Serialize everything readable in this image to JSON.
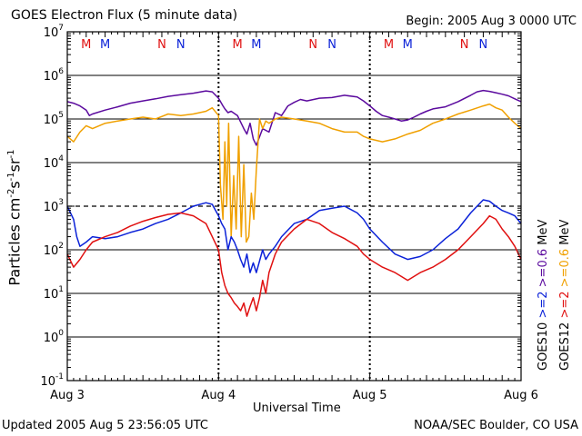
{
  "header": {
    "title": "GOES Electron Flux (5 minute data)",
    "begin": "Begin: 2005 Aug 3 0000 UTC"
  },
  "footer": {
    "updated": "Updated 2005 Aug  5 23:56:05 UTC",
    "credit": "NOAA/SEC Boulder, CO USA"
  },
  "colors": {
    "goes10_high": "#5b0a9e",
    "goes12_high": "#f0a000",
    "goes10_low": "#0b22d8",
    "goes12_low": "#e01010",
    "marker_m": "#e01010",
    "marker_n_alt": "#0b22d8"
  },
  "legend": {
    "goes10_label": "GOES10",
    "goes12_label": "GOES12",
    "ch_low": ">=2",
    "ch_high": ">=0.6",
    "unit": "MeV"
  },
  "chart_data": {
    "type": "line",
    "title": "GOES Electron Flux (5 minute data)",
    "xlabel": "Universal Time",
    "ylabel": "Particles cm-2 s-1 sr-1",
    "yscale": "log",
    "ylim": [
      0.1,
      10000000
    ],
    "xlim": [
      0,
      72
    ],
    "x_unit": "hours since 2005 Aug 3 0000 UTC",
    "x_ticks": [
      {
        "x": 0,
        "label": "Aug 3"
      },
      {
        "x": 24,
        "label": "Aug 4"
      },
      {
        "x": 48,
        "label": "Aug 5"
      },
      {
        "x": 72,
        "label": "Aug 6"
      }
    ],
    "y_ticks": [
      {
        "v": 0.1,
        "base": "10",
        "exp": "-1"
      },
      {
        "v": 1,
        "base": "10",
        "exp": "0"
      },
      {
        "v": 10,
        "base": "10",
        "exp": "1"
      },
      {
        "v": 100,
        "base": "10",
        "exp": "2"
      },
      {
        "v": 1000,
        "base": "10",
        "exp": "3"
      },
      {
        "v": 10000,
        "base": "10",
        "exp": "4"
      },
      {
        "v": 100000,
        "base": "10",
        "exp": "5"
      },
      {
        "v": 1000000,
        "base": "10",
        "exp": "6"
      },
      {
        "v": 10000000,
        "base": "10",
        "exp": "7"
      }
    ],
    "threshold": 1000,
    "markers": [
      {
        "x": 3,
        "label": "M",
        "color": "#e01010"
      },
      {
        "x": 6,
        "label": "M",
        "color": "#0b22d8"
      },
      {
        "x": 15,
        "label": "N",
        "color": "#e01010"
      },
      {
        "x": 18,
        "label": "N",
        "color": "#0b22d8"
      },
      {
        "x": 27,
        "label": "M",
        "color": "#e01010"
      },
      {
        "x": 30,
        "label": "M",
        "color": "#0b22d8"
      },
      {
        "x": 39,
        "label": "N",
        "color": "#e01010"
      },
      {
        "x": 42,
        "label": "N",
        "color": "#0b22d8"
      },
      {
        "x": 51,
        "label": "M",
        "color": "#e01010"
      },
      {
        "x": 54,
        "label": "M",
        "color": "#0b22d8"
      },
      {
        "x": 63,
        "label": "N",
        "color": "#e01010"
      },
      {
        "x": 66,
        "label": "N",
        "color": "#0b22d8"
      }
    ],
    "series": [
      {
        "name": "GOES10 >=0.6 MeV",
        "color": "#5b0a9e",
        "x": [
          0,
          1,
          2,
          3,
          3.5,
          4,
          6,
          8,
          10,
          12,
          14,
          16,
          18,
          20,
          22,
          23,
          24,
          24.7,
          25,
          25.5,
          26,
          27,
          28,
          28.5,
          29,
          29.5,
          30,
          31,
          32,
          33,
          34,
          35,
          36,
          37,
          38,
          40,
          42,
          44,
          46,
          47,
          48,
          49,
          50,
          51,
          52,
          53,
          54,
          55,
          56,
          57,
          58,
          60,
          62,
          64,
          65,
          66,
          67,
          68,
          69,
          70,
          71,
          72
        ],
        "y": [
          250000,
          230000,
          200000,
          160000,
          120000,
          130000,
          160000,
          190000,
          230000,
          260000,
          290000,
          330000,
          360000,
          390000,
          440000,
          420000,
          300000,
          200000,
          170000,
          140000,
          150000,
          120000,
          60000,
          45000,
          80000,
          35000,
          25000,
          60000,
          50000,
          140000,
          120000,
          200000,
          240000,
          280000,
          260000,
          300000,
          310000,
          350000,
          320000,
          260000,
          200000,
          150000,
          120000,
          110000,
          100000,
          90000,
          95000,
          110000,
          130000,
          150000,
          170000,
          190000,
          250000,
          350000,
          420000,
          450000,
          430000,
          400000,
          370000,
          340000,
          290000,
          250000
        ]
      },
      {
        "name": "GOES12 >=0.6 MeV",
        "color": "#f0a000",
        "x": [
          0,
          1,
          2,
          3,
          4,
          6,
          8,
          10,
          12,
          14,
          16,
          18,
          20,
          22,
          23,
          24,
          24.3,
          24.7,
          25,
          25.3,
          25.6,
          26,
          26.4,
          26.8,
          27.2,
          27.6,
          28,
          28.4,
          28.8,
          29.2,
          29.6,
          30,
          30.5,
          31,
          31.5,
          32,
          33,
          34,
          36,
          38,
          40,
          42,
          44,
          46,
          47,
          48,
          50,
          52,
          54,
          56,
          58,
          60,
          62,
          64,
          66,
          67,
          68,
          69,
          70,
          71,
          72
        ],
        "y": [
          40000,
          30000,
          50000,
          70000,
          60000,
          80000,
          90000,
          100000,
          110000,
          100000,
          130000,
          120000,
          130000,
          150000,
          180000,
          120000,
          3000,
          500,
          30000,
          1000,
          80000,
          200,
          5000,
          300,
          40000,
          200,
          9000,
          150,
          200,
          2000,
          500,
          7000,
          100000,
          60000,
          90000,
          80000,
          100000,
          110000,
          100000,
          90000,
          80000,
          60000,
          50000,
          50000,
          40000,
          35000,
          30000,
          35000,
          45000,
          55000,
          80000,
          100000,
          130000,
          160000,
          200000,
          220000,
          180000,
          160000,
          110000,
          80000,
          60000
        ]
      },
      {
        "name": "GOES10 >=2 MeV",
        "color": "#0b22d8",
        "x": [
          0,
          1,
          1.5,
          2,
          3,
          4,
          6,
          8,
          10,
          12,
          14,
          16,
          18,
          20,
          22,
          23,
          24,
          24.5,
          25,
          25.5,
          26,
          26.5,
          27,
          27.5,
          28,
          28.5,
          29,
          29.5,
          30,
          31,
          31.5,
          32,
          33,
          34,
          36,
          38,
          40,
          42,
          44,
          46,
          47,
          48,
          50,
          52,
          54,
          56,
          58,
          60,
          62,
          64,
          66,
          67,
          68,
          69,
          70,
          71,
          72
        ],
        "y": [
          1000,
          500,
          200,
          120,
          150,
          200,
          180,
          200,
          250,
          300,
          400,
          500,
          700,
          1000,
          1200,
          1100,
          600,
          400,
          300,
          100,
          200,
          150,
          100,
          60,
          40,
          80,
          30,
          50,
          30,
          100,
          60,
          80,
          120,
          200,
          400,
          500,
          800,
          900,
          1000,
          700,
          500,
          300,
          150,
          80,
          60,
          70,
          100,
          180,
          300,
          700,
          1400,
          1300,
          1000,
          800,
          700,
          600,
          400
        ]
      },
      {
        "name": "GOES12 >=2 MeV",
        "color": "#e01010",
        "x": [
          0,
          1,
          2,
          3,
          4,
          6,
          8,
          10,
          12,
          14,
          16,
          18,
          20,
          22,
          23,
          24,
          24.5,
          25,
          25.5,
          26,
          26.5,
          27,
          27.5,
          28,
          28.5,
          29,
          29.5,
          30,
          30.5,
          31,
          31.5,
          32,
          33,
          34,
          36,
          38,
          40,
          42,
          44,
          46,
          47,
          48,
          50,
          52,
          54,
          56,
          58,
          60,
          62,
          64,
          66,
          67,
          68,
          69,
          70,
          71,
          72
        ],
        "y": [
          80,
          40,
          60,
          100,
          150,
          200,
          250,
          350,
          450,
          550,
          650,
          700,
          600,
          400,
          200,
          100,
          30,
          15,
          10,
          8,
          6,
          5,
          4,
          6,
          3,
          5,
          8,
          4,
          8,
          20,
          10,
          30,
          80,
          150,
          300,
          500,
          400,
          250,
          180,
          120,
          80,
          60,
          40,
          30,
          20,
          30,
          40,
          60,
          100,
          200,
          400,
          600,
          500,
          300,
          200,
          120,
          60
        ]
      }
    ]
  }
}
